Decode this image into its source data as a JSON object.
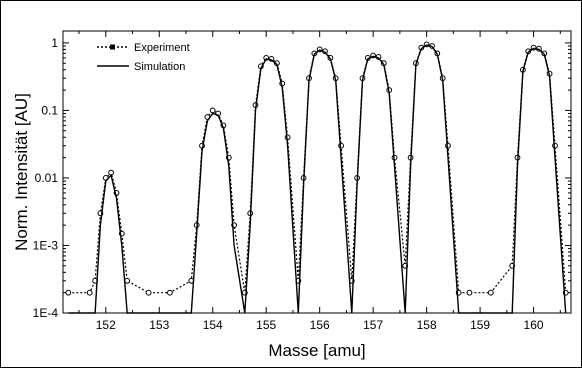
{
  "chart_data": {
    "type": "line",
    "xlabel": "Masse  [amu]",
    "ylabel": "Norm. Intensität  [AU]",
    "xlim": [
      151.2,
      160.7
    ],
    "ylim": [
      0.0001,
      1.5
    ],
    "yscale": "log",
    "x_ticks": [
      "152",
      "153",
      "154",
      "155",
      "156",
      "157",
      "158",
      "159",
      "160"
    ],
    "y_ticks": [
      "1E-4",
      "1E-3",
      "0.01",
      "0.1",
      "1"
    ],
    "legend_position": "top-left",
    "series": [
      {
        "name": "Experiment",
        "style": "dotted line with markers",
        "x": [
          151.3,
          151.7,
          151.8,
          151.9,
          152.0,
          152.1,
          152.2,
          152.3,
          152.4,
          152.8,
          153.2,
          153.6,
          153.7,
          153.8,
          153.9,
          154.0,
          154.1,
          154.2,
          154.3,
          154.4,
          154.6,
          154.7,
          154.8,
          154.9,
          155.0,
          155.1,
          155.2,
          155.3,
          155.4,
          155.6,
          155.7,
          155.8,
          155.9,
          156.0,
          156.1,
          156.2,
          156.3,
          156.4,
          156.6,
          156.7,
          156.8,
          156.9,
          157.0,
          157.1,
          157.2,
          157.3,
          157.4,
          157.6,
          157.7,
          157.8,
          157.9,
          158.0,
          158.1,
          158.2,
          158.3,
          158.4,
          158.6,
          158.8,
          159.2,
          159.6,
          159.7,
          159.8,
          159.9,
          160.0,
          160.1,
          160.2,
          160.3,
          160.4,
          160.6
        ],
        "y": [
          0.0002,
          0.0002,
          0.0003,
          0.003,
          0.01,
          0.012,
          0.006,
          0.0015,
          0.0003,
          0.0002,
          0.0002,
          0.0003,
          0.002,
          0.03,
          0.08,
          0.1,
          0.09,
          0.06,
          0.02,
          0.002,
          0.0002,
          0.003,
          0.12,
          0.45,
          0.6,
          0.58,
          0.5,
          0.25,
          0.04,
          0.0003,
          0.01,
          0.3,
          0.7,
          0.8,
          0.75,
          0.6,
          0.3,
          0.03,
          0.0003,
          0.01,
          0.3,
          0.6,
          0.65,
          0.62,
          0.5,
          0.2,
          0.02,
          0.0005,
          0.02,
          0.5,
          0.85,
          0.95,
          0.9,
          0.7,
          0.3,
          0.03,
          0.0002,
          0.0002,
          0.0002,
          0.0005,
          0.02,
          0.4,
          0.75,
          0.85,
          0.82,
          0.7,
          0.35,
          0.03,
          0.0002
        ]
      },
      {
        "name": "Simulation",
        "style": "solid line",
        "x": [
          151.3,
          151.7,
          151.8,
          151.9,
          152.0,
          152.1,
          152.2,
          152.3,
          152.4,
          152.8,
          153.2,
          153.6,
          153.7,
          153.8,
          153.9,
          154.0,
          154.1,
          154.2,
          154.3,
          154.4,
          154.6,
          154.7,
          154.8,
          154.9,
          155.0,
          155.1,
          155.2,
          155.3,
          155.4,
          155.6,
          155.7,
          155.8,
          155.9,
          156.0,
          156.1,
          156.2,
          156.3,
          156.4,
          156.6,
          156.7,
          156.8,
          156.9,
          157.0,
          157.1,
          157.2,
          157.3,
          157.4,
          157.6,
          157.7,
          157.8,
          157.9,
          158.0,
          158.1,
          158.2,
          158.3,
          158.4,
          158.6,
          158.8,
          159.2,
          159.6,
          159.7,
          159.8,
          159.9,
          160.0,
          160.1,
          160.2,
          160.3,
          160.4,
          160.6
        ],
        "y": [
          0.0001,
          0.0001,
          0.0001,
          0.002,
          0.009,
          0.011,
          0.005,
          0.001,
          0.0001,
          0.0001,
          0.0001,
          0.0001,
          0.0015,
          0.025,
          0.07,
          0.09,
          0.085,
          0.055,
          0.015,
          0.001,
          0.0001,
          0.002,
          0.1,
          0.42,
          0.58,
          0.56,
          0.48,
          0.22,
          0.03,
          0.0001,
          0.008,
          0.28,
          0.68,
          0.78,
          0.73,
          0.58,
          0.28,
          0.02,
          0.0001,
          0.008,
          0.28,
          0.58,
          0.63,
          0.6,
          0.48,
          0.18,
          0.015,
          0.0001,
          0.015,
          0.48,
          0.82,
          0.93,
          0.88,
          0.68,
          0.28,
          0.02,
          0.0001,
          0.0001,
          0.0001,
          0.0001,
          0.015,
          0.38,
          0.73,
          0.83,
          0.8,
          0.68,
          0.32,
          0.02,
          0.0001
        ]
      }
    ]
  }
}
